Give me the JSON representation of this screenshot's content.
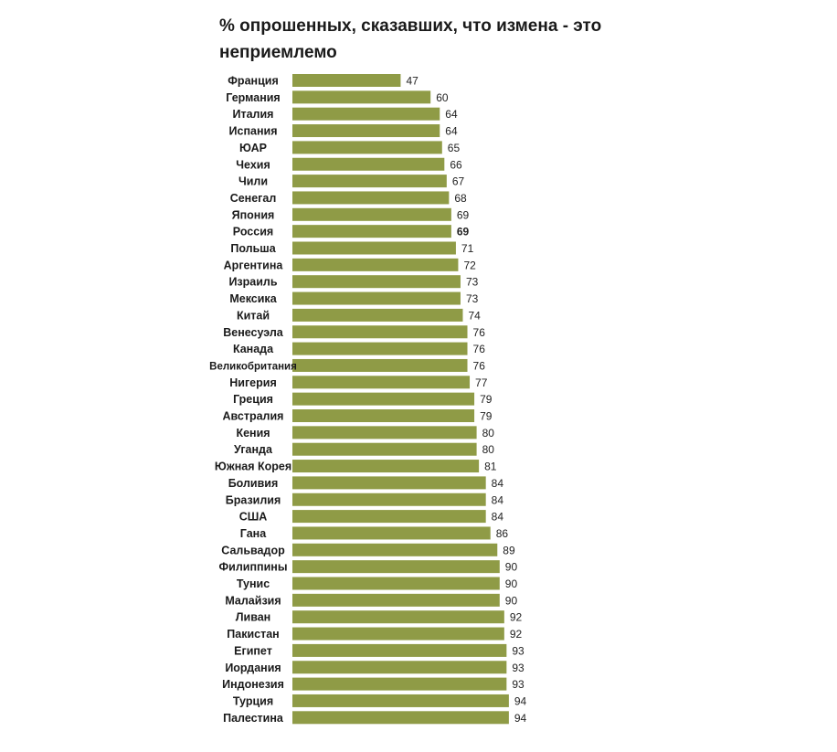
{
  "chart_data": {
    "type": "bar",
    "orientation": "horizontal",
    "title": "% опрошенных, сказавших, что измена  - это неприемлемо",
    "xlabel": "",
    "ylabel": "",
    "xlim": [
      0,
      100
    ],
    "categories": [
      "Франция",
      "Германия",
      "Италия",
      "Испания",
      "ЮАР",
      "Чехия",
      "Чили",
      "Сенегал",
      "Япония",
      "Россия",
      "Польша",
      "Аргентина",
      "Израиль",
      "Мексика",
      "Китай",
      "Венесуэла",
      "Канада",
      "Великобритания",
      "Нигерия",
      "Греция",
      "Австралия",
      "Кения",
      "Уганда",
      "Южная Корея",
      "Боливия",
      "Бразилия",
      "США",
      "Гана",
      "Сальвадор",
      "Филиппины",
      "Тунис",
      "Малайзия",
      "Ливан",
      "Пакистан",
      "Египет",
      "Иордания",
      "Индонезия",
      "Турция",
      "Палестина"
    ],
    "values": [
      47,
      60,
      64,
      64,
      65,
      66,
      67,
      68,
      69,
      69,
      71,
      72,
      73,
      73,
      74,
      76,
      76,
      76,
      77,
      79,
      79,
      80,
      80,
      81,
      84,
      84,
      84,
      86,
      89,
      90,
      90,
      90,
      92,
      92,
      93,
      93,
      93,
      94,
      94
    ],
    "highlight_category": "Россия",
    "colors": {
      "bar": "#8f9b46",
      "label": "#1a1a1a",
      "highlight": "#e0202a",
      "value": "#222222"
    }
  }
}
